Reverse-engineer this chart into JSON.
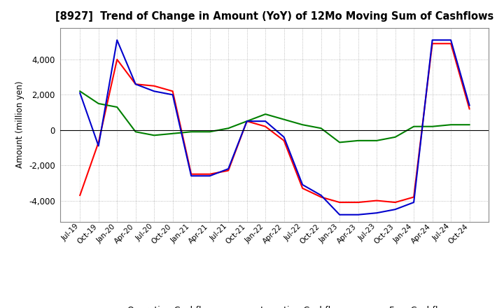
{
  "title": "[8927]  Trend of Change in Amount (YoY) of 12Mo Moving Sum of Cashflows",
  "ylabel": "Amount (million yen)",
  "ylim": [
    -5200,
    5800
  ],
  "yticks": [
    -4000,
    -2000,
    0,
    2000,
    4000
  ],
  "x_labels": [
    "Jul-19",
    "Oct-19",
    "Jan-20",
    "Apr-20",
    "Jul-20",
    "Oct-20",
    "Jan-21",
    "Apr-21",
    "Jul-21",
    "Oct-21",
    "Jan-22",
    "Apr-22",
    "Jul-22",
    "Oct-22",
    "Jan-23",
    "Apr-23",
    "Jul-23",
    "Oct-23",
    "Jan-24",
    "Apr-24",
    "Jul-24",
    "Oct-24"
  ],
  "operating": [
    -3700,
    -700,
    4000,
    2600,
    2500,
    2200,
    -2500,
    -2500,
    -2300,
    500,
    200,
    -600,
    -3300,
    -3800,
    -4100,
    -4100,
    -4000,
    -4100,
    -3800,
    4900,
    4900,
    1200
  ],
  "investing": [
    2200,
    1500,
    1300,
    -100,
    -300,
    -200,
    -100,
    -100,
    100,
    500,
    900,
    600,
    300,
    100,
    -700,
    -600,
    -600,
    -400,
    200,
    200,
    300,
    300
  ],
  "free": [
    2100,
    -900,
    5100,
    2600,
    2200,
    2000,
    -2600,
    -2600,
    -2200,
    500,
    500,
    -400,
    -3100,
    -3700,
    -4800,
    -4800,
    -4700,
    -4500,
    -4100,
    5100,
    5100,
    1400
  ],
  "operating_color": "#ff0000",
  "investing_color": "#008000",
  "free_color": "#0000cd",
  "background_color": "#ffffff",
  "grid_color": "#aaaaaa"
}
